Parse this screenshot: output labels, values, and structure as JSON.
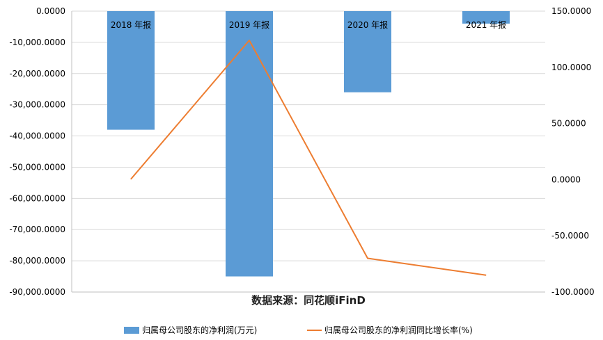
{
  "chart_data": {
    "type": "bar",
    "categories": [
      "2018 年报",
      "2019 年报",
      "2020 年报",
      "2021 年报"
    ],
    "series": [
      {
        "name": "归属母公司股东的净利润(万元)",
        "type": "bar",
        "axis": "left",
        "color": "#5b9bd5",
        "values": [
          -38000,
          -85000,
          -26000,
          -4000
        ]
      },
      {
        "name": "归属母公司股东的净利润同比增长率(%)",
        "type": "line",
        "axis": "right",
        "color": "#ed7d31",
        "values": [
          0.5,
          124,
          -70,
          -85
        ]
      }
    ],
    "left_axis": {
      "ylim": [
        -90000,
        0
      ],
      "ticks": [
        0,
        -10000,
        -20000,
        -30000,
        -40000,
        -50000,
        -60000,
        -70000,
        -80000,
        -90000
      ],
      "tick_labels": [
        "0.0000",
        "-10,000.0000",
        "-20,000.0000",
        "-30,000.0000",
        "-40,000.0000",
        "-50,000.0000",
        "-60,000.0000",
        "-70,000.0000",
        "-80,000.0000",
        "-90,000.0000"
      ]
    },
    "right_axis": {
      "ylim": [
        -100,
        150
      ],
      "ticks": [
        150,
        100,
        50,
        0,
        -50,
        -100
      ],
      "tick_labels": [
        "150.0000",
        "100.0000",
        "50.0000",
        "0.0000",
        "-50.0000",
        "-100.0000"
      ]
    },
    "grid": true,
    "source_note": "数据来源：同花顺iFinD",
    "legend_position": "bottom"
  }
}
